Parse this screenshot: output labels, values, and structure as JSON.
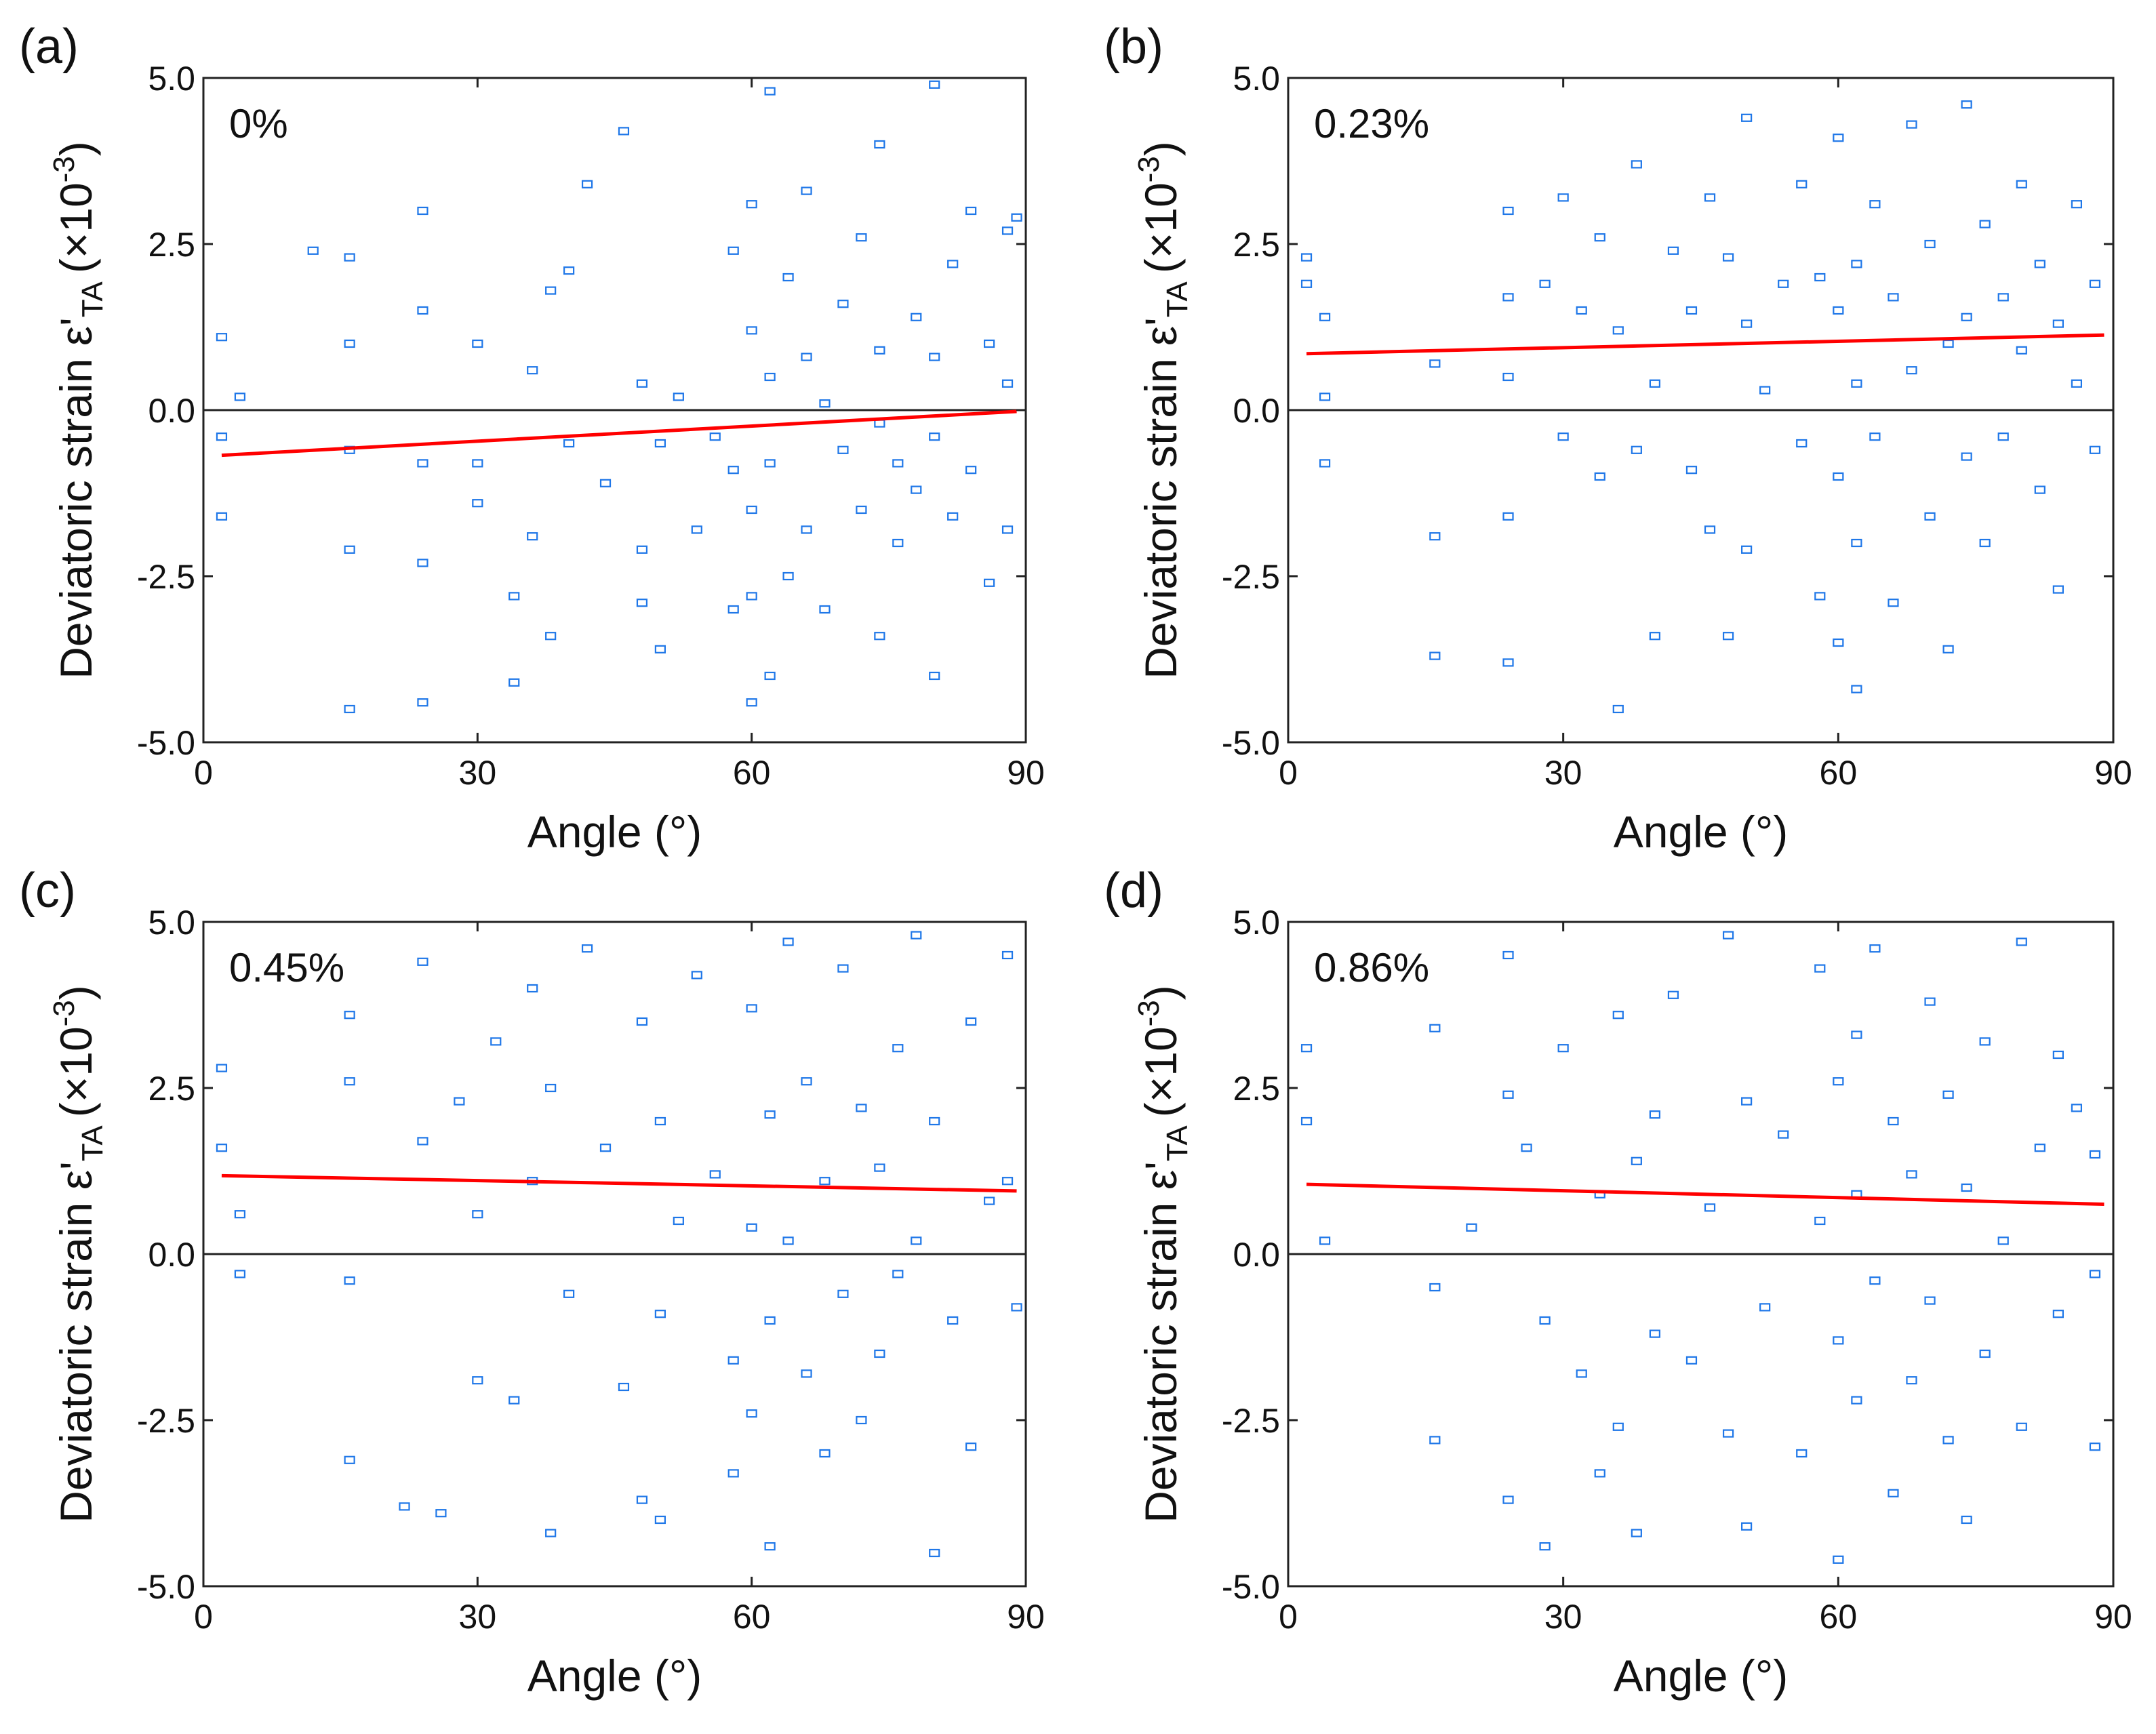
{
  "colors": {
    "points": "#1f77e8",
    "fit": "#ff0000",
    "axes": "#222222"
  },
  "chart_data": [
    {
      "panel": "(a)",
      "type": "scatter",
      "annotation": "0%",
      "xlabel": "Angle (°)",
      "ylabel_main": "Deviatoric strain ε'",
      "ylabel_sub": "TA",
      "ylabel_unit_open": "(×10",
      "ylabel_unit_exp": "-3",
      "ylabel_unit_close": ")",
      "xlim": [
        0,
        90
      ],
      "ylim": [
        -5.0,
        5.0
      ],
      "xticks": [
        "0",
        "30",
        "60",
        "90"
      ],
      "yticks": [
        "5.0",
        "2.5",
        "0.0",
        "-2.5",
        "-5.0"
      ],
      "fit": {
        "x": [
          2,
          89
        ],
        "y": [
          -0.68,
          -0.02
        ]
      },
      "zero_line": 0.0,
      "points": {
        "x": [
          2,
          2,
          2,
          4,
          12,
          16,
          16,
          16,
          16,
          16,
          24,
          24,
          24,
          24,
          24,
          30,
          30,
          30,
          34,
          34,
          36,
          36,
          38,
          38,
          40,
          40,
          42,
          44,
          46,
          48,
          48,
          48,
          50,
          50,
          52,
          54,
          56,
          58,
          58,
          58,
          60,
          60,
          60,
          60,
          60,
          62,
          62,
          62,
          62,
          64,
          64,
          66,
          66,
          66,
          68,
          68,
          70,
          70,
          72,
          72,
          74,
          74,
          74,
          74,
          76,
          76,
          78,
          78,
          80,
          80,
          80,
          80,
          82,
          82,
          84,
          84,
          86,
          86,
          88,
          88,
          88,
          89
        ],
        "y": [
          1.1,
          -0.4,
          -1.6,
          0.2,
          2.4,
          2.3,
          1.0,
          -0.6,
          -2.1,
          -4.5,
          3.0,
          1.5,
          -0.8,
          -2.3,
          -4.4,
          1.0,
          -0.8,
          -1.4,
          -2.8,
          -4.1,
          0.6,
          -1.9,
          1.8,
          -3.4,
          2.1,
          -0.5,
          3.4,
          -1.1,
          4.2,
          0.4,
          -2.1,
          -2.9,
          -0.5,
          -3.6,
          0.2,
          -1.8,
          -0.4,
          2.4,
          -0.9,
          -3.0,
          3.1,
          1.2,
          -1.5,
          -2.8,
          -4.4,
          4.8,
          0.5,
          -0.8,
          -4.0,
          2.0,
          -2.5,
          3.3,
          0.8,
          -1.8,
          0.1,
          -3.0,
          1.6,
          -0.6,
          2.6,
          -1.5,
          4.0,
          0.9,
          -0.2,
          -3.4,
          -0.8,
          -2.0,
          1.4,
          -1.2,
          4.9,
          0.8,
          -0.4,
          -4.0,
          2.2,
          -1.6,
          3.0,
          -0.9,
          1.0,
          -2.6,
          2.7,
          0.4,
          -1.8,
          2.9
        ]
      }
    },
    {
      "panel": "(b)",
      "type": "scatter",
      "annotation": "0.23%",
      "xlabel": "Angle (°)",
      "ylabel_main": "Deviatoric strain ε'",
      "ylabel_sub": "TA",
      "ylabel_unit_open": "(×10",
      "ylabel_unit_exp": "-3",
      "ylabel_unit_close": ")",
      "xlim": [
        0,
        90
      ],
      "ylim": [
        -5.0,
        5.0
      ],
      "xticks": [
        "0",
        "30",
        "60",
        "90"
      ],
      "yticks": [
        "5.0",
        "2.5",
        "0.0",
        "-2.5",
        "-5.0"
      ],
      "fit": {
        "x": [
          2,
          89
        ],
        "y": [
          0.85,
          1.13
        ]
      },
      "zero_line": 0.0,
      "points": {
        "x": [
          2,
          2,
          4,
          4,
          4,
          16,
          16,
          16,
          24,
          24,
          24,
          24,
          24,
          28,
          30,
          30,
          32,
          34,
          34,
          36,
          36,
          38,
          38,
          40,
          40,
          42,
          44,
          44,
          46,
          46,
          48,
          48,
          50,
          50,
          50,
          52,
          54,
          56,
          56,
          58,
          58,
          60,
          60,
          60,
          60,
          62,
          62,
          62,
          62,
          64,
          64,
          66,
          66,
          68,
          68,
          70,
          70,
          72,
          72,
          74,
          74,
          74,
          76,
          76,
          78,
          78,
          80,
          80,
          82,
          82,
          84,
          84,
          86,
          86,
          88,
          88
        ],
        "y": [
          2.3,
          1.9,
          1.4,
          0.2,
          -0.8,
          0.7,
          -1.9,
          -3.7,
          3.0,
          1.7,
          0.5,
          -1.6,
          -3.8,
          1.9,
          3.2,
          -0.4,
          1.5,
          2.6,
          -1.0,
          1.2,
          -4.5,
          3.7,
          -0.6,
          0.4,
          -3.4,
          2.4,
          1.5,
          -0.9,
          3.2,
          -1.8,
          2.3,
          -3.4,
          4.4,
          1.3,
          -2.1,
          0.3,
          1.9,
          3.4,
          -0.5,
          2.0,
          -2.8,
          4.1,
          1.5,
          -1.0,
          -3.5,
          2.2,
          0.4,
          -2.0,
          -4.2,
          3.1,
          -0.4,
          1.7,
          -2.9,
          4.3,
          0.6,
          2.5,
          -1.6,
          1.0,
          -3.6,
          4.6,
          1.4,
          -0.7,
          2.8,
          -2.0,
          1.7,
          -0.4,
          3.4,
          0.9,
          2.2,
          -1.2,
          1.3,
          -2.7,
          3.1,
          0.4,
          1.9,
          -0.6
        ]
      }
    },
    {
      "panel": "(c)",
      "type": "scatter",
      "annotation": "0.45%",
      "xlabel": "Angle (°)",
      "ylabel_main": "Deviatoric strain ε'",
      "ylabel_sub": "TA",
      "ylabel_unit_open": "(×10",
      "ylabel_unit_exp": "-3",
      "ylabel_unit_close": ")",
      "xlim": [
        0,
        90
      ],
      "ylim": [
        -5.0,
        5.0
      ],
      "xticks": [
        "0",
        "30",
        "60",
        "90"
      ],
      "yticks": [
        "5.0",
        "2.5",
        "0.0",
        "-2.5",
        "-5.0"
      ],
      "fit": {
        "x": [
          2,
          89
        ],
        "y": [
          1.18,
          0.95
        ]
      },
      "zero_line": 0.0,
      "points": {
        "x": [
          2,
          2,
          4,
          4,
          16,
          16,
          16,
          16,
          22,
          24,
          24,
          26,
          28,
          30,
          30,
          32,
          34,
          36,
          36,
          38,
          38,
          40,
          42,
          44,
          46,
          48,
          48,
          50,
          50,
          50,
          52,
          54,
          56,
          58,
          58,
          60,
          60,
          60,
          62,
          62,
          62,
          64,
          64,
          66,
          66,
          68,
          68,
          70,
          70,
          72,
          72,
          74,
          74,
          76,
          76,
          78,
          78,
          80,
          80,
          82,
          84,
          84,
          86,
          88,
          88,
          89
        ],
        "y": [
          2.8,
          1.6,
          0.6,
          -0.3,
          3.6,
          2.6,
          -0.4,
          -3.1,
          -3.8,
          4.4,
          1.7,
          -3.9,
          2.3,
          0.6,
          -1.9,
          3.2,
          -2.2,
          4.0,
          1.1,
          2.5,
          -4.2,
          -0.6,
          4.6,
          1.6,
          -2.0,
          3.5,
          -3.7,
          2.0,
          -0.9,
          -4.0,
          0.5,
          4.2,
          1.2,
          -1.6,
          -3.3,
          3.7,
          0.4,
          -2.4,
          2.1,
          -1.0,
          -4.4,
          4.7,
          0.2,
          2.6,
          -1.8,
          1.1,
          -3.0,
          4.3,
          -0.6,
          2.2,
          -2.5,
          1.3,
          -1.5,
          3.1,
          -0.3,
          4.8,
          0.2,
          2.0,
          -4.5,
          -1.0,
          3.5,
          -2.9,
          0.8,
          4.5,
          1.1,
          -0.8
        ]
      }
    },
    {
      "panel": "(d)",
      "type": "scatter",
      "annotation": "0.86%",
      "xlabel": "Angle (°)",
      "ylabel_main": "Deviatoric strain ε'",
      "ylabel_sub": "TA",
      "ylabel_unit_open": "(×10",
      "ylabel_unit_exp": "-3",
      "ylabel_unit_close": ")",
      "xlim": [
        0,
        90
      ],
      "ylim": [
        -5.0,
        5.0
      ],
      "xticks": [
        "0",
        "30",
        "60",
        "90"
      ],
      "yticks": [
        "5.0",
        "2.5",
        "0.0",
        "-2.5",
        "-5.0"
      ],
      "fit": {
        "x": [
          2,
          89
        ],
        "y": [
          1.05,
          0.75
        ]
      },
      "zero_line": 0.0,
      "points": {
        "x": [
          2,
          2,
          4,
          16,
          16,
          16,
          20,
          24,
          24,
          24,
          26,
          28,
          28,
          30,
          32,
          34,
          34,
          36,
          36,
          38,
          38,
          40,
          40,
          42,
          44,
          46,
          48,
          48,
          50,
          50,
          52,
          54,
          56,
          58,
          58,
          60,
          60,
          60,
          62,
          62,
          62,
          64,
          64,
          66,
          66,
          68,
          68,
          70,
          70,
          72,
          72,
          74,
          74,
          76,
          76,
          78,
          80,
          80,
          82,
          84,
          84,
          86,
          88,
          88,
          88
        ],
        "y": [
          3.1,
          2.0,
          0.2,
          3.4,
          -0.5,
          -2.8,
          0.4,
          4.5,
          2.4,
          -3.7,
          1.6,
          -4.4,
          -1.0,
          3.1,
          -1.8,
          0.9,
          -3.3,
          3.6,
          -2.6,
          1.4,
          -4.2,
          2.1,
          -1.2,
          3.9,
          -1.6,
          0.7,
          4.8,
          -2.7,
          2.3,
          -4.1,
          -0.8,
          1.8,
          -3.0,
          4.3,
          0.5,
          2.6,
          -1.3,
          -4.6,
          3.3,
          0.9,
          -2.2,
          4.6,
          -0.4,
          2.0,
          -3.6,
          1.2,
          -1.9,
          3.8,
          -0.7,
          2.4,
          -2.8,
          1.0,
          -4.0,
          3.2,
          -1.5,
          0.2,
          4.7,
          -2.6,
          1.6,
          3.0,
          -0.9,
          2.2,
          1.5,
          -0.3,
          -2.9
        ]
      }
    }
  ]
}
